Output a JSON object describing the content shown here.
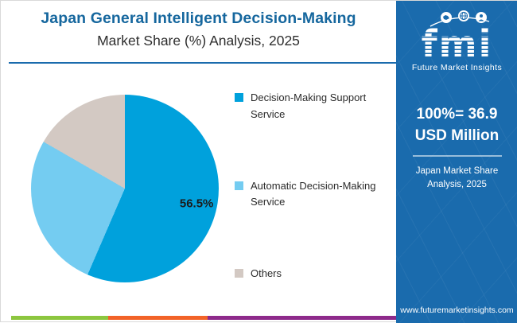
{
  "header": {
    "title_line1": "Japan General Intelligent Decision-Making",
    "title_line2": "Market Share (%) Analysis, 2025"
  },
  "chart_data": {
    "type": "pie",
    "title": "Japan General Intelligent Decision-Making Market Share (%) Analysis, 2025",
    "unit": "percent",
    "start_angle_deg": 0,
    "clockwise": true,
    "legend_position": "right",
    "total_label": "100%= 36.9 USD Million",
    "slices": [
      {
        "label": "Decision-Making Support Service",
        "value": 56.5,
        "data_label": "56.5%",
        "color": "#00A1DC"
      },
      {
        "label": "Automatic Decision-Making Service",
        "value": 26.8,
        "data_label": "",
        "color": "#74CCF1"
      },
      {
        "label": "Others",
        "value": 16.7,
        "data_label": "",
        "color": "#D3C9C3"
      }
    ]
  },
  "legend": {
    "items": [
      {
        "label": "Decision-Making Support Service",
        "color": "#00A1DC"
      },
      {
        "label": "Automatic Decision-Making Service",
        "color": "#74CCF1"
      },
      {
        "label": "Others",
        "color": "#D3C9C3"
      }
    ]
  },
  "sidebar": {
    "logo_text": "fmi",
    "logo_tagline": "Future Market Insights",
    "stat_line1": "100%= 36.9",
    "stat_line2": "USD Million",
    "stat_sub_line1": "Japan Market Share",
    "stat_sub_line2": "Analysis, 2025",
    "website": "www.futuremarketinsights.com",
    "background_color": "#1A6BAD"
  },
  "footer": {
    "stripe_colors": [
      "#8CC63F",
      "#F26328",
      "#8E2A8B"
    ]
  },
  "colors": {
    "title_blue": "#16679E",
    "divider_blue": "#1A6BAD",
    "text_dark": "#2B2B2B",
    "pie_label_color": "#1B1B1B"
  }
}
